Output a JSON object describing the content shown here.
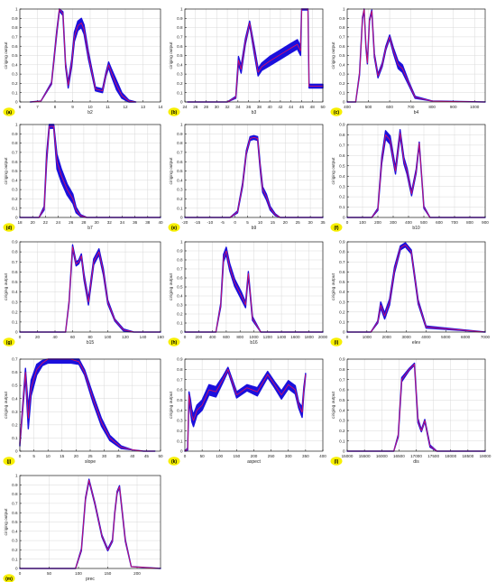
{
  "colors": {
    "band": "#1a10dd",
    "line": "#e0115f",
    "badge": "#f7ef00",
    "grid": "#d9d9d9",
    "axis": "#000000"
  },
  "ylabel": "ciriging output",
  "chart_data": [
    {
      "type": "line",
      "panel_label": "(a)",
      "xlabel": "b2",
      "xlim": [
        6,
        14
      ],
      "ylim": [
        0,
        1
      ],
      "xticks": [
        6,
        7,
        8,
        9,
        10,
        11,
        12,
        13,
        14
      ],
      "yticks": [
        0,
        0.1,
        0.2,
        0.3,
        0.4,
        0.5,
        0.6,
        0.7,
        0.8,
        0.9,
        1
      ],
      "x": [
        6.6,
        7.2,
        7.8,
        8.1,
        8.25,
        8.45,
        8.6,
        8.75,
        8.95,
        9.1,
        9.3,
        9.5,
        9.65,
        9.9,
        10.3,
        10.7,
        10.9,
        11.05,
        11.2,
        11.5,
        11.8,
        12.2,
        12.6
      ],
      "y": [
        0,
        0.01,
        0.2,
        0.75,
        1.0,
        0.95,
        0.4,
        0.18,
        0.42,
        0.7,
        0.82,
        0.85,
        0.78,
        0.5,
        0.14,
        0.12,
        0.3,
        0.4,
        0.32,
        0.18,
        0.07,
        0.01,
        0
      ],
      "band": [
        0,
        0,
        0.01,
        0.02,
        0.02,
        0.02,
        0.02,
        0.03,
        0.04,
        0.05,
        0.05,
        0.05,
        0.05,
        0.04,
        0.02,
        0.02,
        0.02,
        0.03,
        0.04,
        0.05,
        0.03,
        0.01,
        0
      ]
    },
    {
      "type": "line",
      "panel_label": "(b)",
      "xlabel": "b3",
      "xlim": [
        24,
        50
      ],
      "ylim": [
        0,
        1
      ],
      "xticks": [
        24,
        26,
        28,
        30,
        32,
        34,
        36,
        38,
        40,
        42,
        44,
        46,
        48,
        50
      ],
      "yticks": [
        0,
        0.1,
        0.2,
        0.3,
        0.4,
        0.5,
        0.6,
        0.7,
        0.8,
        0.9,
        1
      ],
      "x": [
        24.5,
        32,
        33.6,
        34.1,
        34.6,
        35.4,
        36.2,
        37.1,
        37.8,
        38.5,
        40,
        42,
        44,
        45.2,
        45.8,
        46,
        47.2,
        47.4,
        47.8,
        50
      ],
      "y": [
        0,
        0,
        0.05,
        0.45,
        0.35,
        0.65,
        0.85,
        0.55,
        0.32,
        0.38,
        0.44,
        0.51,
        0.58,
        0.62,
        0.55,
        1.0,
        1.0,
        0.17,
        0.17,
        0.17
      ],
      "band": [
        0,
        0,
        0.01,
        0.04,
        0.04,
        0.03,
        0.02,
        0.04,
        0.04,
        0.04,
        0.05,
        0.05,
        0.05,
        0.05,
        0.05,
        0.01,
        0.01,
        0.02,
        0.02,
        0.02
      ]
    },
    {
      "type": "line",
      "panel_label": "(c)",
      "xlabel": "b4",
      "xlim": [
        400,
        1050
      ],
      "ylim": [
        0,
        1
      ],
      "xticks": [
        400,
        500,
        600,
        700,
        800,
        900,
        1000
      ],
      "yticks": [
        0,
        0.1,
        0.2,
        0.3,
        0.4,
        0.5,
        0.6,
        0.7,
        0.8,
        0.9,
        1
      ],
      "x": [
        400,
        440,
        458,
        472,
        480,
        488,
        495,
        505,
        516,
        528,
        545,
        565,
        582,
        600,
        618,
        640,
        660,
        690,
        720,
        800,
        1050
      ],
      "y": [
        0,
        0,
        0.3,
        0.9,
        1.0,
        0.6,
        0.42,
        0.88,
        0.98,
        0.5,
        0.28,
        0.4,
        0.58,
        0.7,
        0.55,
        0.4,
        0.36,
        0.2,
        0.05,
        0.01,
        0
      ],
      "band": [
        0,
        0,
        0.01,
        0.01,
        0.01,
        0.01,
        0.01,
        0.01,
        0.01,
        0.02,
        0.02,
        0.02,
        0.02,
        0.02,
        0.03,
        0.04,
        0.04,
        0.02,
        0.01,
        0,
        0
      ]
    },
    {
      "type": "line",
      "panel_label": "(d)",
      "xlabel": "b7",
      "xlim": [
        18,
        40
      ],
      "ylim": [
        0,
        1
      ],
      "xticks": [
        18,
        20,
        22,
        24,
        26,
        28,
        30,
        32,
        34,
        36,
        38,
        40
      ],
      "yticks": [
        0,
        0.1,
        0.2,
        0.3,
        0.4,
        0.5,
        0.6,
        0.7,
        0.8,
        0.9,
        1
      ],
      "x": [
        18,
        21,
        21.8,
        22.2,
        22.6,
        23.3,
        23.8,
        24.5,
        25.4,
        26.3,
        26.8,
        27.5,
        28.5,
        40
      ],
      "y": [
        0,
        0,
        0.1,
        0.65,
        0.98,
        0.98,
        0.6,
        0.45,
        0.3,
        0.2,
        0.08,
        0.02,
        0,
        0
      ],
      "band": [
        0,
        0,
        0.02,
        0.05,
        0.02,
        0.02,
        0.08,
        0.07,
        0.06,
        0.05,
        0.03,
        0.01,
        0,
        0
      ]
    },
    {
      "type": "line",
      "panel_label": "(e)",
      "xlabel": "b9",
      "xlim": [
        -20,
        35
      ],
      "ylim": [
        0,
        1
      ],
      "xticks": [
        -20,
        -15,
        -10,
        -5,
        0,
        5,
        10,
        15,
        20,
        25,
        30,
        35
      ],
      "yticks": [
        0,
        0.1,
        0.2,
        0.3,
        0.4,
        0.5,
        0.6,
        0.7,
        0.8,
        0.9,
        1
      ],
      "x": [
        -20,
        -2,
        1,
        3,
        4.5,
        6,
        7.5,
        9,
        10,
        11,
        12.5,
        14,
        16,
        18,
        35
      ],
      "y": [
        0,
        0,
        0.06,
        0.35,
        0.7,
        0.85,
        0.86,
        0.85,
        0.55,
        0.3,
        0.22,
        0.1,
        0.03,
        0,
        0
      ],
      "band": [
        0,
        0,
        0.01,
        0.02,
        0.02,
        0.02,
        0.02,
        0.02,
        0.03,
        0.03,
        0.03,
        0.02,
        0.01,
        0,
        0
      ]
    },
    {
      "type": "line",
      "panel_label": "(f)",
      "xlabel": "b10",
      "xlim": [
        0,
        900
      ],
      "ylim": [
        0,
        0.9
      ],
      "xticks": [
        0,
        100,
        200,
        300,
        400,
        500,
        600,
        700,
        800,
        900
      ],
      "yticks": [
        0,
        0.1,
        0.2,
        0.3,
        0.4,
        0.5,
        0.6,
        0.7,
        0.8,
        0.9
      ],
      "x": [
        0,
        160,
        200,
        225,
        250,
        280,
        315,
        345,
        370,
        390,
        420,
        450,
        470,
        500,
        540,
        900
      ],
      "y": [
        0,
        0,
        0.08,
        0.55,
        0.8,
        0.75,
        0.45,
        0.82,
        0.55,
        0.45,
        0.23,
        0.45,
        0.72,
        0.1,
        0,
        0
      ],
      "band": [
        0,
        0,
        0.01,
        0.03,
        0.04,
        0.04,
        0.03,
        0.03,
        0.03,
        0.03,
        0.02,
        0.02,
        0.01,
        0.01,
        0,
        0
      ]
    },
    {
      "type": "line",
      "panel_label": "(g)",
      "xlabel": "b15",
      "xlim": [
        0,
        160
      ],
      "ylim": [
        0,
        0.9
      ],
      "xticks": [
        0,
        20,
        40,
        60,
        80,
        100,
        120,
        140,
        160
      ],
      "yticks": [
        0,
        0.1,
        0.2,
        0.3,
        0.4,
        0.5,
        0.6,
        0.7,
        0.8,
        0.9
      ],
      "x": [
        0,
        52,
        56,
        60,
        64,
        67,
        70,
        73,
        78,
        84,
        90,
        95,
        100,
        108,
        118,
        130,
        160
      ],
      "y": [
        0,
        0,
        0.3,
        0.85,
        0.68,
        0.7,
        0.76,
        0.55,
        0.3,
        0.7,
        0.8,
        0.6,
        0.3,
        0.12,
        0.02,
        0,
        0
      ],
      "band": [
        0,
        0,
        0.01,
        0.02,
        0.02,
        0.02,
        0.02,
        0.03,
        0.03,
        0.03,
        0.03,
        0.03,
        0.02,
        0.01,
        0.01,
        0,
        0
      ]
    },
    {
      "type": "line",
      "panel_label": "(h)",
      "xlabel": "b16",
      "xlim": [
        0,
        2000
      ],
      "ylim": [
        0,
        1
      ],
      "xticks": [
        0,
        200,
        400,
        600,
        800,
        1000,
        1200,
        1400,
        1600,
        1800,
        2000
      ],
      "yticks": [
        0,
        0.1,
        0.2,
        0.3,
        0.4,
        0.5,
        0.6,
        0.7,
        0.8,
        0.9,
        1
      ],
      "x": [
        0,
        450,
        520,
        560,
        600,
        650,
        720,
        820,
        880,
        920,
        980,
        1100,
        2000
      ],
      "y": [
        0,
        0,
        0.3,
        0.82,
        0.9,
        0.72,
        0.55,
        0.4,
        0.3,
        0.65,
        0.15,
        0,
        0
      ],
      "band": [
        0,
        0,
        0.02,
        0.04,
        0.04,
        0.04,
        0.04,
        0.04,
        0.03,
        0.02,
        0.02,
        0,
        0
      ]
    },
    {
      "type": "line",
      "panel_label": "(i)",
      "xlabel": "elev",
      "xlim": [
        0,
        7000
      ],
      "ylim": [
        0,
        0.9
      ],
      "xticks": [
        0,
        1000,
        2000,
        3000,
        4000,
        5000,
        6000,
        7000
      ],
      "yticks": [
        0,
        0.1,
        0.2,
        0.3,
        0.4,
        0.5,
        0.6,
        0.7,
        0.8,
        0.9
      ],
      "x": [
        0,
        1200,
        1550,
        1700,
        1900,
        2150,
        2400,
        2700,
        2950,
        3250,
        3600,
        4000,
        7000
      ],
      "y": [
        0,
        0,
        0.1,
        0.27,
        0.16,
        0.3,
        0.62,
        0.84,
        0.87,
        0.8,
        0.3,
        0.05,
        0
      ],
      "band": [
        0,
        0,
        0.01,
        0.03,
        0.03,
        0.03,
        0.03,
        0.02,
        0.02,
        0.02,
        0.02,
        0.01,
        0
      ]
    },
    {
      "type": "line",
      "panel_label": "(j)",
      "xlabel": "slope",
      "xlim": [
        0,
        50
      ],
      "ylim": [
        0,
        0.7
      ],
      "xticks": [
        0,
        5,
        10,
        15,
        20,
        25,
        30,
        35,
        40,
        45,
        50
      ],
      "yticks": [
        0,
        0.1,
        0.2,
        0.3,
        0.4,
        0.5,
        0.6,
        0.7
      ],
      "x": [
        0,
        2,
        3,
        4,
        6,
        8,
        10,
        14,
        18,
        21,
        23,
        26,
        29,
        32,
        36,
        40,
        44,
        48
      ],
      "y": [
        0.05,
        0.6,
        0.25,
        0.48,
        0.62,
        0.67,
        0.7,
        0.7,
        0.7,
        0.68,
        0.6,
        0.4,
        0.22,
        0.1,
        0.03,
        0.01,
        0,
        0
      ],
      "band": [
        0.01,
        0.03,
        0.08,
        0.06,
        0.04,
        0.02,
        0.03,
        0.03,
        0.03,
        0.02,
        0.02,
        0.03,
        0.03,
        0.02,
        0.01,
        0,
        0,
        0
      ]
    },
    {
      "type": "line",
      "panel_label": "(k)",
      "xlabel": "aspect",
      "xlim": [
        0,
        400
      ],
      "ylim": [
        0,
        0.9
      ],
      "xticks": [
        0,
        50,
        100,
        150,
        200,
        250,
        300,
        350,
        400
      ],
      "yticks": [
        0,
        0.1,
        0.2,
        0.3,
        0.4,
        0.5,
        0.6,
        0.7,
        0.8,
        0.9
      ],
      "x": [
        0,
        8,
        12,
        16,
        20,
        25,
        35,
        50,
        70,
        90,
        110,
        125,
        150,
        180,
        210,
        240,
        260,
        280,
        300,
        320,
        330,
        340,
        345,
        350
      ],
      "y": [
        0,
        0.02,
        0.55,
        0.45,
        0.35,
        0.3,
        0.4,
        0.45,
        0.6,
        0.58,
        0.7,
        0.8,
        0.55,
        0.62,
        0.58,
        0.75,
        0.65,
        0.55,
        0.65,
        0.6,
        0.45,
        0.38,
        0.6,
        0.75
      ],
      "band": [
        0,
        0.01,
        0.03,
        0.06,
        0.06,
        0.06,
        0.05,
        0.05,
        0.05,
        0.05,
        0.03,
        0.02,
        0.03,
        0.03,
        0.04,
        0.03,
        0.03,
        0.04,
        0.04,
        0.04,
        0.03,
        0.05,
        0.03,
        0.01
      ]
    },
    {
      "type": "line",
      "panel_label": "(l)",
      "xlabel": "dis",
      "xlim": [
        15000,
        19000
      ],
      "ylim": [
        0,
        0.9
      ],
      "xticks": [
        15000,
        15500,
        16000,
        16500,
        17000,
        17500,
        18000,
        18500,
        19000
      ],
      "yticks": [
        0,
        0.1,
        0.2,
        0.3,
        0.4,
        0.5,
        0.6,
        0.7,
        0.8,
        0.9
      ],
      "x": [
        15000,
        16350,
        16480,
        16580,
        16800,
        16950,
        17050,
        17150,
        17250,
        17400,
        17600,
        19000
      ],
      "y": [
        0,
        0,
        0.15,
        0.7,
        0.8,
        0.85,
        0.3,
        0.2,
        0.3,
        0.05,
        0,
        0
      ],
      "band": [
        0,
        0,
        0.01,
        0.02,
        0.01,
        0.01,
        0.02,
        0.01,
        0.01,
        0.01,
        0,
        0
      ]
    },
    {
      "type": "line",
      "panel_label": "(m)",
      "xlabel": "prec",
      "xlim": [
        0,
        240
      ],
      "ylim": [
        0,
        1
      ],
      "xticks": [
        0,
        50,
        100,
        150,
        200
      ],
      "yticks": [
        0,
        0.1,
        0.2,
        0.3,
        0.4,
        0.5,
        0.6,
        0.7,
        0.8,
        0.9,
        1
      ],
      "x": [
        0,
        95,
        105,
        112,
        118,
        128,
        140,
        150,
        158,
        162,
        166,
        170,
        180,
        190,
        240
      ],
      "y": [
        0,
        0,
        0.2,
        0.75,
        0.95,
        0.7,
        0.35,
        0.2,
        0.3,
        0.6,
        0.82,
        0.88,
        0.3,
        0.02,
        0
      ],
      "band": [
        0,
        0,
        0.01,
        0.01,
        0.01,
        0.01,
        0.01,
        0.01,
        0.01,
        0.01,
        0.01,
        0.01,
        0.01,
        0,
        0
      ]
    }
  ]
}
